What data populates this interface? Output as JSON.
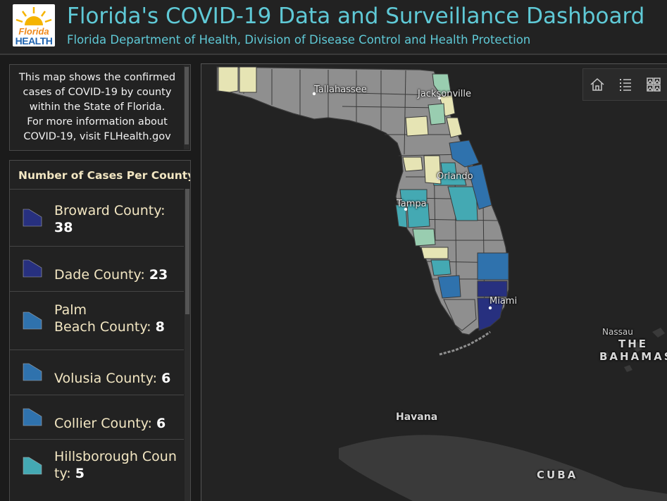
{
  "header": {
    "logo_florida": "Florida",
    "logo_health": "HEALTH",
    "title": "Florida's COVID-19 Data and Surveillance Dashboard",
    "subtitle": "Florida Department of Health, Division of Disease Control and Health Protection"
  },
  "info": {
    "lines": [
      "This map shows the confirmed",
      "cases of COVID-19 by county",
      "within the State of Florida.",
      "For more information about",
      "COVID-19, visit FLHealth.gov"
    ]
  },
  "legend": {
    "title": "Number of Cases Per County",
    "items": [
      {
        "county": "Broward County:",
        "count": "38",
        "color": "#27307f"
      },
      {
        "county": "Dade County:",
        "count": "23",
        "color": "#27307f"
      },
      {
        "county": "Palm Beach County:",
        "count": "8",
        "color": "#2f72ad"
      },
      {
        "county": "Volusia County:",
        "count": "6",
        "color": "#2f72ad"
      },
      {
        "county": "Collier County:",
        "count": "6",
        "color": "#2f72ad"
      },
      {
        "county": "Hillsborough County:",
        "count": "5",
        "color": "#44a9b3"
      }
    ]
  },
  "map": {
    "labels": {
      "tallahassee": "Tallahassee",
      "jacksonville": "Jacksonville",
      "orlando": "Orlando",
      "tampa": "Tampa",
      "miami": "Miami",
      "nassau": "Nassau",
      "bahamas_line1": "THE",
      "bahamas_line2": "BAHAMAS",
      "havana": "Havana",
      "cuba": "CUBA"
    },
    "colors": {
      "no_cases": "#8f8f8f",
      "cases_1": "#e6e4b4",
      "cases_2": "#99cdb0",
      "cases_3": "#44a9b3",
      "cases_6": "#2f72ad",
      "cases_20": "#27307f",
      "land": "#3a3a3a",
      "water": "#232323"
    },
    "tools": {
      "home": "home-icon",
      "legend": "list-icon",
      "basemap": "basemap-gallery-icon"
    }
  }
}
